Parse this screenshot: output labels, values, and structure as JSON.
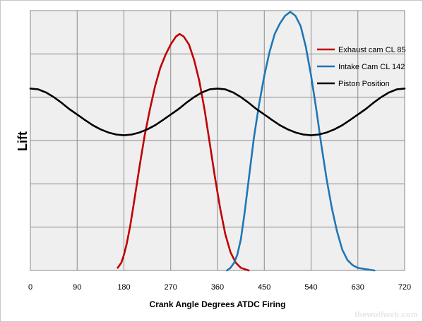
{
  "chart_data": {
    "type": "line",
    "xlabel": "Crank Angle Degrees ATDC Firing",
    "ylabel": "Lift",
    "xlim": [
      0,
      720
    ],
    "ylim": [
      0,
      1
    ],
    "x_ticks": [
      "0",
      "90",
      "180",
      "270",
      "360",
      "450",
      "540",
      "630",
      "720"
    ],
    "grid": true,
    "legend_position": "top-right",
    "series": [
      {
        "name": "Exhaust cam CL 85",
        "color": "#c00000",
        "points": [
          [
            168,
            0.01
          ],
          [
            175,
            0.03
          ],
          [
            180,
            0.06
          ],
          [
            185,
            0.1
          ],
          [
            192,
            0.17
          ],
          [
            200,
            0.27
          ],
          [
            210,
            0.4
          ],
          [
            220,
            0.52
          ],
          [
            230,
            0.62
          ],
          [
            240,
            0.71
          ],
          [
            250,
            0.78
          ],
          [
            260,
            0.83
          ],
          [
            270,
            0.87
          ],
          [
            280,
            0.9
          ],
          [
            287,
            0.91
          ],
          [
            295,
            0.9
          ],
          [
            305,
            0.87
          ],
          [
            315,
            0.81
          ],
          [
            325,
            0.73
          ],
          [
            335,
            0.62
          ],
          [
            345,
            0.49
          ],
          [
            355,
            0.36
          ],
          [
            365,
            0.24
          ],
          [
            375,
            0.14
          ],
          [
            385,
            0.07
          ],
          [
            395,
            0.03
          ],
          [
            405,
            0.01
          ],
          [
            420,
            0.0
          ]
        ]
      },
      {
        "name": "Intake Cam CL 142",
        "color": "#1f77b4",
        "points": [
          [
            378,
            0.0
          ],
          [
            385,
            0.01
          ],
          [
            392,
            0.03
          ],
          [
            398,
            0.06
          ],
          [
            405,
            0.12
          ],
          [
            412,
            0.22
          ],
          [
            420,
            0.35
          ],
          [
            430,
            0.51
          ],
          [
            440,
            0.64
          ],
          [
            450,
            0.75
          ],
          [
            460,
            0.84
          ],
          [
            470,
            0.91
          ],
          [
            480,
            0.95
          ],
          [
            490,
            0.98
          ],
          [
            500,
            0.995
          ],
          [
            510,
            0.98
          ],
          [
            520,
            0.94
          ],
          [
            530,
            0.86
          ],
          [
            540,
            0.75
          ],
          [
            550,
            0.62
          ],
          [
            560,
            0.48
          ],
          [
            570,
            0.35
          ],
          [
            580,
            0.24
          ],
          [
            590,
            0.15
          ],
          [
            600,
            0.08
          ],
          [
            610,
            0.04
          ],
          [
            620,
            0.02
          ],
          [
            630,
            0.01
          ],
          [
            645,
            0.005
          ],
          [
            662,
            0.0
          ]
        ]
      },
      {
        "name": "Piston Position",
        "color": "#000000",
        "points": [
          [
            0,
            0.7
          ],
          [
            15,
            0.697
          ],
          [
            30,
            0.685
          ],
          [
            45,
            0.667
          ],
          [
            60,
            0.645
          ],
          [
            75,
            0.621
          ],
          [
            90,
            0.6
          ],
          [
            105,
            0.579
          ],
          [
            120,
            0.559
          ],
          [
            135,
            0.543
          ],
          [
            150,
            0.531
          ],
          [
            165,
            0.523
          ],
          [
            180,
            0.52
          ],
          [
            195,
            0.523
          ],
          [
            210,
            0.531
          ],
          [
            225,
            0.543
          ],
          [
            240,
            0.559
          ],
          [
            255,
            0.579
          ],
          [
            270,
            0.6
          ],
          [
            285,
            0.621
          ],
          [
            300,
            0.645
          ],
          [
            315,
            0.667
          ],
          [
            330,
            0.685
          ],
          [
            345,
            0.697
          ],
          [
            360,
            0.7
          ],
          [
            375,
            0.697
          ],
          [
            390,
            0.685
          ],
          [
            405,
            0.667
          ],
          [
            420,
            0.645
          ],
          [
            435,
            0.621
          ],
          [
            450,
            0.6
          ],
          [
            465,
            0.579
          ],
          [
            480,
            0.559
          ],
          [
            495,
            0.543
          ],
          [
            510,
            0.531
          ],
          [
            525,
            0.523
          ],
          [
            540,
            0.52
          ],
          [
            555,
            0.523
          ],
          [
            570,
            0.531
          ],
          [
            585,
            0.543
          ],
          [
            600,
            0.559
          ],
          [
            615,
            0.579
          ],
          [
            630,
            0.6
          ],
          [
            645,
            0.621
          ],
          [
            660,
            0.645
          ],
          [
            675,
            0.667
          ],
          [
            690,
            0.685
          ],
          [
            705,
            0.697
          ],
          [
            720,
            0.7
          ]
        ]
      }
    ]
  },
  "watermark": "thewolfweb.com"
}
